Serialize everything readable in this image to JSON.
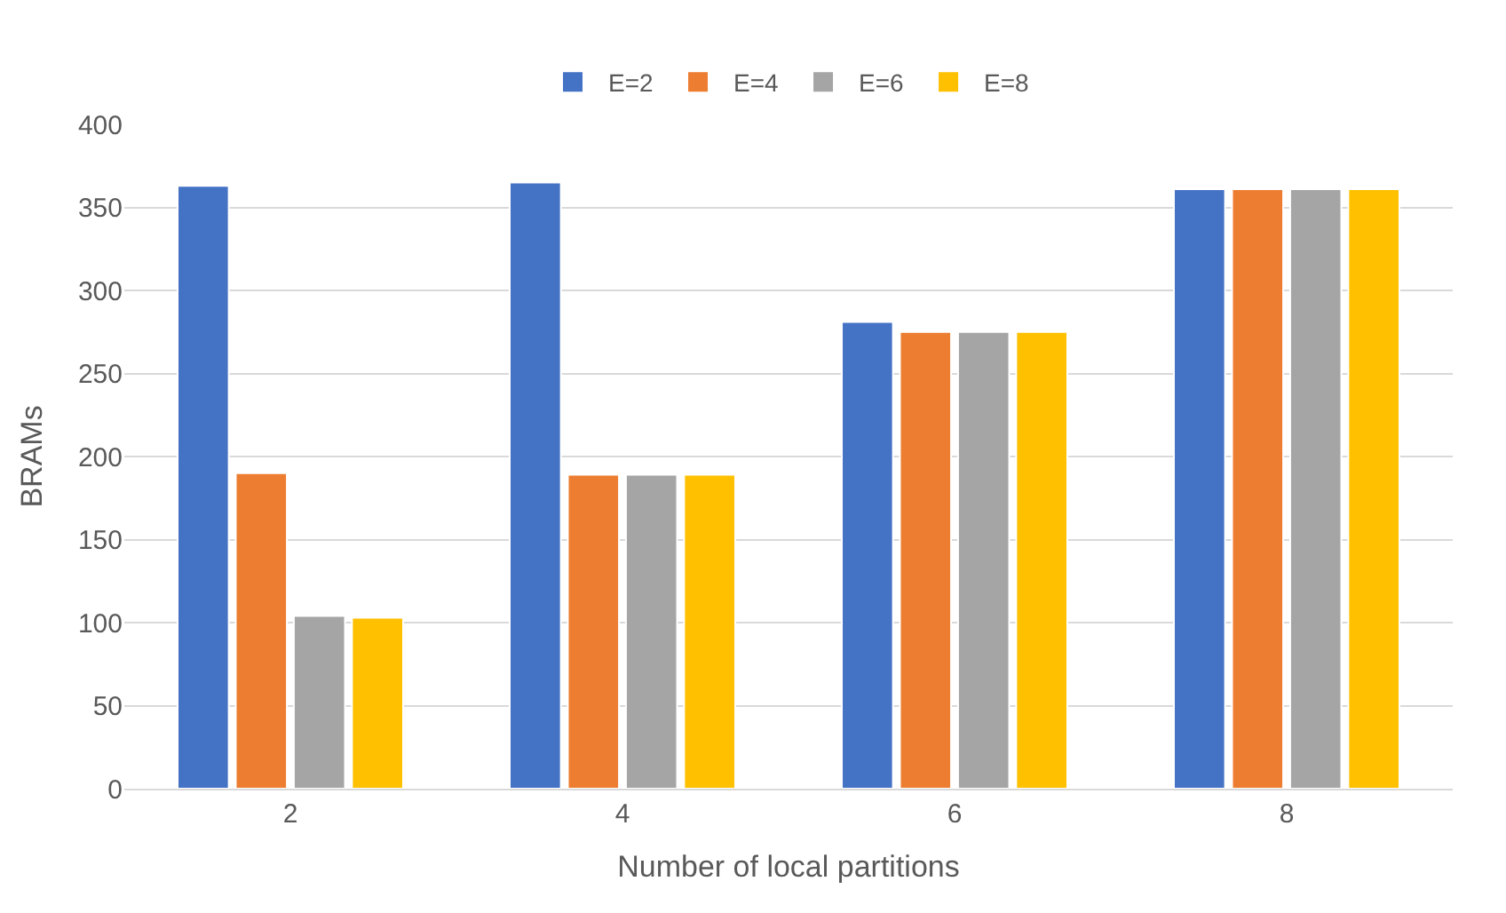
{
  "chart_data": {
    "type": "bar",
    "xlabel": "Number of local partitions",
    "ylabel": "BRAMs",
    "categories": [
      "2",
      "4",
      "6",
      "8"
    ],
    "series": [
      {
        "name": "E=2",
        "color": "#4472c4",
        "values": [
          363,
          365,
          281,
          361
        ]
      },
      {
        "name": "E=4",
        "color": "#ed7d31",
        "values": [
          190,
          189,
          275,
          361
        ]
      },
      {
        "name": "E=6",
        "color": "#a5a5a5",
        "values": [
          104,
          189,
          275,
          361
        ]
      },
      {
        "name": "E=8",
        "color": "#ffc000",
        "values": [
          103,
          189,
          275,
          361
        ]
      }
    ],
    "ylim": [
      0,
      400
    ],
    "yticks": [
      0,
      50,
      100,
      150,
      200,
      250,
      300,
      350,
      400
    ],
    "grid": "y",
    "legend": "top"
  }
}
